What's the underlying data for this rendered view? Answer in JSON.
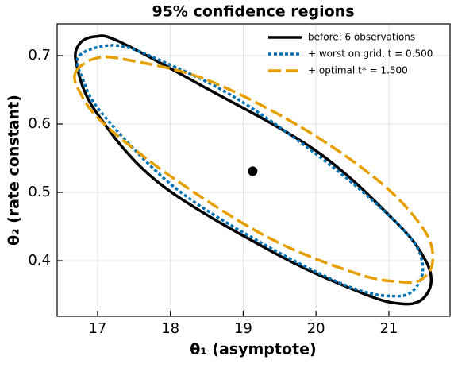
{
  "chart_data": {
    "type": "line",
    "title": "95% confidence regions",
    "xlabel": "θ₁ (asymptote)",
    "ylabel": "θ₂ (rate constant)",
    "xlim": [
      16.445,
      21.84
    ],
    "ylim": [
      0.3186,
      0.7465
    ],
    "xticks": [
      17,
      18,
      19,
      20,
      21
    ],
    "yticks": [
      0.4,
      0.5,
      0.6,
      0.7
    ],
    "grid": true,
    "closed": true,
    "legend": "upper right",
    "series": [
      {
        "name": "before: 6 observations",
        "color": "#000000",
        "dash": "solid",
        "x": [
          16.71,
          16.75,
          16.97,
          17.29,
          18.38,
          20.01,
          21.11,
          21.49,
          21.58,
          21.44,
          21.16,
          20.67,
          19.47,
          17.84,
          16.97
        ],
        "values": [
          0.688,
          0.717,
          0.728,
          0.721,
          0.659,
          0.56,
          0.455,
          0.403,
          0.368,
          0.342,
          0.337,
          0.351,
          0.409,
          0.514,
          0.619
        ]
      },
      {
        "name": "+ worst on grid, t = 0.500",
        "color": "#0072b2",
        "dash": "dotted",
        "x": [
          16.75,
          17.24,
          17.84,
          18.93,
          20.23,
          21.21,
          21.46,
          21.38,
          21.11,
          20.45,
          19.25,
          18.05,
          17.08,
          16.8
        ],
        "values": [
          0.7,
          0.715,
          0.694,
          0.636,
          0.537,
          0.444,
          0.397,
          0.362,
          0.348,
          0.362,
          0.426,
          0.508,
          0.613,
          0.665
        ]
      },
      {
        "name": "+ optimal t* = 1.500",
        "color": "#e69f00",
        "dash": "dashed",
        "x": [
          16.7,
          16.97,
          17.4,
          18.49,
          19.8,
          20.89,
          21.49,
          21.6,
          21.44,
          21.16,
          20.56,
          19.36,
          18.05,
          17.08,
          16.75
        ],
        "values": [
          0.676,
          0.696,
          0.694,
          0.665,
          0.595,
          0.514,
          0.444,
          0.398,
          0.372,
          0.369,
          0.381,
          0.433,
          0.52,
          0.601,
          0.648
        ]
      }
    ],
    "points": {
      "color": "#000000",
      "x": [
        19.13
      ],
      "values": [
        0.531
      ]
    }
  }
}
